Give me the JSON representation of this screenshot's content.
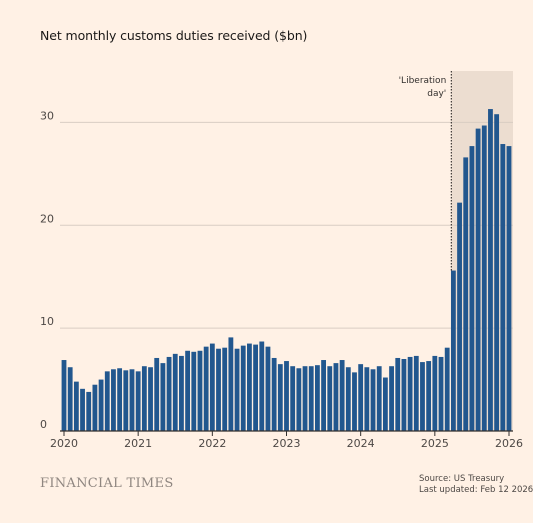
{
  "colors": {
    "background": "#fff1e5",
    "bar": "#22578e",
    "shade": "#ecddd0",
    "grid": "#d9cdc3",
    "axis": "#33302e"
  },
  "footer": {
    "brand": "FINANCIAL TIMES",
    "source": "Source: US Treasury",
    "updated": "Last updated: Feb 12 2026"
  },
  "chart_data": {
    "type": "bar",
    "title": "Net monthly customs duties received ($bn)",
    "xlabel": "",
    "ylabel": "",
    "ylim": [
      0,
      35
    ],
    "yticks": [
      0,
      10,
      20,
      30
    ],
    "grid": true,
    "x_start": "2020-01",
    "xticks": [
      "2020",
      "2021",
      "2022",
      "2023",
      "2024",
      "2025",
      "2026"
    ],
    "annotation": {
      "lines": [
        "'Liberation",
        "day'"
      ],
      "date": "2025-04"
    },
    "shaded_from": "2025-04",
    "values": [
      6.9,
      6.2,
      4.8,
      4.1,
      3.8,
      4.5,
      5.0,
      5.8,
      6.0,
      6.1,
      5.9,
      6.0,
      5.8,
      6.3,
      6.2,
      7.1,
      6.6,
      7.2,
      7.5,
      7.3,
      7.8,
      7.7,
      7.8,
      8.2,
      8.5,
      8.0,
      8.1,
      9.1,
      8.0,
      8.3,
      8.5,
      8.4,
      8.7,
      8.2,
      7.1,
      6.5,
      6.8,
      6.3,
      6.1,
      6.3,
      6.3,
      6.4,
      6.9,
      6.3,
      6.6,
      6.9,
      6.2,
      5.7,
      6.5,
      6.2,
      6.0,
      6.3,
      5.2,
      6.3,
      7.1,
      7.0,
      7.2,
      7.3,
      6.7,
      6.8,
      7.3,
      7.2,
      8.1,
      15.6,
      22.2,
      26.6,
      27.7,
      29.4,
      29.7,
      31.3,
      30.8,
      27.9,
      27.7
    ]
  }
}
